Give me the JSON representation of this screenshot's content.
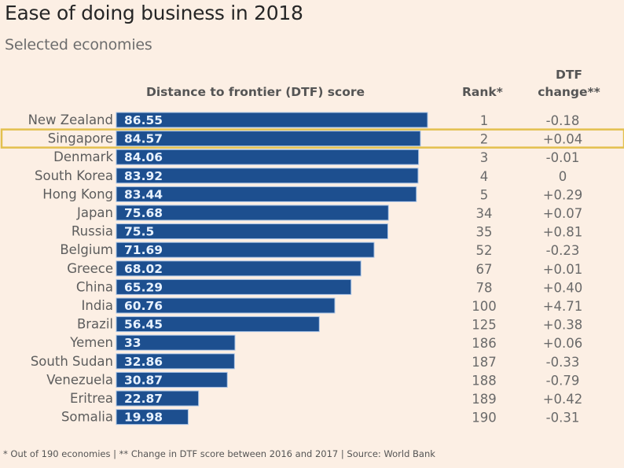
{
  "header": {
    "title": "Ease of doing business in 2018",
    "subtitle": "Selected economies"
  },
  "columns": {
    "score": "Distance to frontier (DTF) score",
    "rank": "Rank*",
    "change_line1": "DTF",
    "change_line2": "change**"
  },
  "footnote": "* Out of 190 economies | ** Change in DTF score between 2016 and 2017 | Source: World Bank",
  "colors": {
    "bar": "#1d4f8f",
    "bar_border": "#a9c4e6",
    "highlight": "#e3c04e",
    "background": "#fcefe4"
  },
  "highlighted_economy": "Singapore",
  "chart_data": {
    "type": "bar",
    "orientation": "horizontal",
    "title": "Ease of doing business in 2018",
    "subtitle": "Selected economies",
    "xlabel": "Distance to frontier (DTF) score",
    "ylabel": "",
    "xlim": [
      0,
      100
    ],
    "grid": false,
    "legend": "none",
    "categories": [
      "New Zealand",
      "Singapore",
      "Denmark",
      "South Korea",
      "Hong Kong",
      "Japan",
      "Russia",
      "Belgium",
      "Greece",
      "China",
      "India",
      "Brazil",
      "Yemen",
      "South Sudan",
      "Venezuela",
      "Eritrea",
      "Somalia"
    ],
    "values": [
      86.55,
      84.57,
      84.06,
      83.92,
      83.44,
      75.68,
      75.5,
      71.69,
      68.02,
      65.29,
      60.76,
      56.45,
      33,
      32.86,
      30.87,
      22.87,
      19.98
    ],
    "value_labels": [
      "86.55",
      "84.57",
      "84.06",
      "83.92",
      "83.44",
      "75.68",
      "75.5",
      "71.69",
      "68.02",
      "65.29",
      "60.76",
      "56.45",
      "33",
      "32.86",
      "30.87",
      "22.87",
      "19.98"
    ],
    "table_columns": [
      {
        "name": "Rank*",
        "values": [
          "1",
          "2",
          "3",
          "4",
          "5",
          "34",
          "35",
          "52",
          "67",
          "78",
          "100",
          "125",
          "186",
          "187",
          "188",
          "189",
          "190"
        ]
      },
      {
        "name": "DTF change**",
        "values": [
          "-0.18",
          "+0.04",
          "-0.01",
          "0",
          "+0.29",
          "+0.07",
          "+0.81",
          "-0.23",
          "+0.01",
          "+0.40",
          "+4.71",
          "+0.38",
          "+0.06",
          "-0.33",
          "-0.79",
          "+0.42",
          "-0.31"
        ]
      }
    ]
  }
}
